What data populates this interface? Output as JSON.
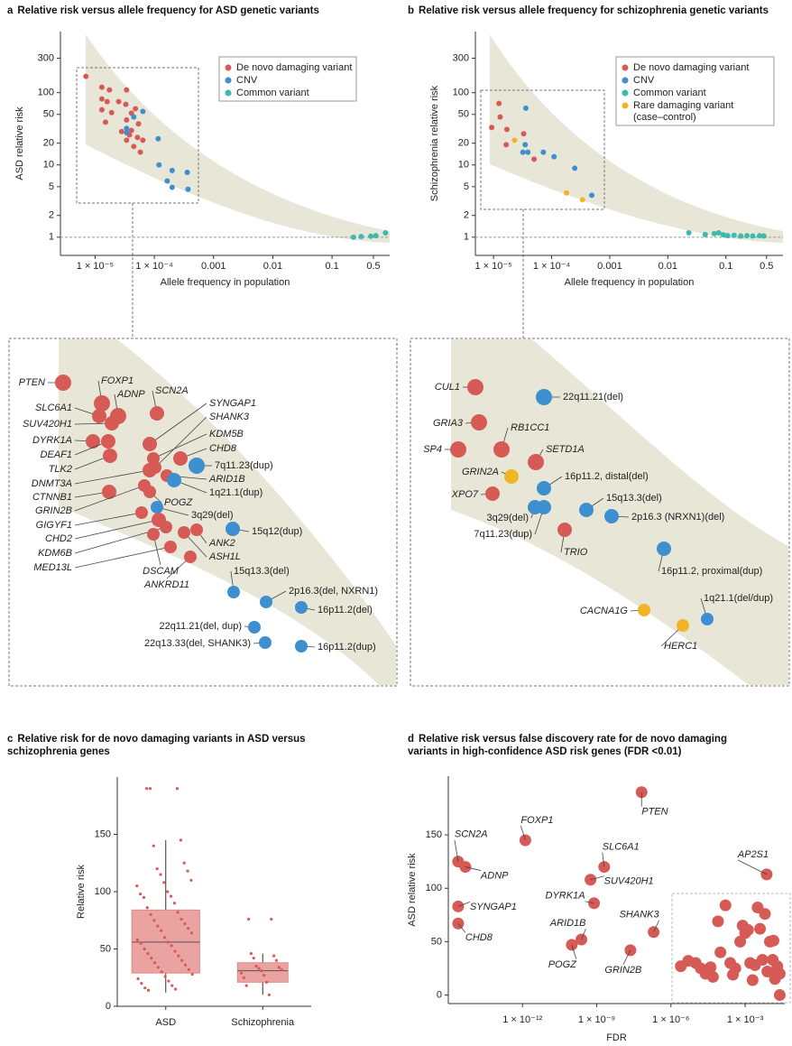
{
  "chart_data": [
    {
      "panel": "a",
      "type": "scatter",
      "title": "Relative risk versus allele frequency for ASD genetic variants",
      "x_label": "Allele frequency in population",
      "y_label": "ASD relative risk",
      "xscale": "log",
      "yscale": "log",
      "xlim": [
        2.6e-06,
        0.94
      ],
      "ylim": [
        0.56,
        700
      ],
      "xticks": [
        {
          "value": 1e-05,
          "label": "1 × 10⁻⁵"
        },
        {
          "value": 0.0001,
          "label": "1 × 10⁻⁴"
        },
        0.001,
        0.01,
        0.1,
        0.5
      ],
      "yticks": [
        1,
        2,
        5,
        10,
        20,
        50,
        100,
        300
      ],
      "legend": "top-right",
      "series": [
        {
          "name": "De novo damaging variant",
          "color": "#d65a55",
          "x": [
            7e-06,
            1.3e-05,
            1.75e-05,
            1.3e-05,
            3.4e-05,
            1.6e-05,
            2.5e-05,
            1.3e-05,
            1.9e-05,
            3.3e-05,
            4.8e-05,
            4.1e-05,
            1.5e-05,
            3.4e-05,
            2.8e-05,
            5.4e-05,
            4.1e-05,
            5.2e-05,
            3.4e-05,
            6.4e-05,
            4.5e-05,
            5.8e-05,
            3.8e-05
          ],
          "values": [
            168,
            119,
            109,
            82,
            109,
            75,
            75,
            58,
            53,
            69,
            60,
            52,
            39,
            42,
            29,
            37,
            30,
            24,
            22,
            22,
            18,
            15,
            26
          ]
        },
        {
          "name": "CNV",
          "color": "#3d8fd0",
          "x": [
            6.4e-05,
            4.5e-05,
            3.4e-05,
            3.4e-05,
            0.000116,
            0.00012,
            0.0002,
            0.000165,
            0.0002,
            0.00036,
            0.00037
          ],
          "values": [
            55,
            46,
            32,
            28,
            23,
            10,
            8.4,
            6.0,
            4.9,
            7.9,
            4.6
          ]
        },
        {
          "name": "Common variant",
          "color": "#3bbab0",
          "x": [
            0.23,
            0.31,
            0.45,
            0.55,
            0.8
          ],
          "values": [
            1.0,
            1.02,
            1.03,
            1.05,
            1.15
          ]
        }
      ]
    },
    {
      "panel": "b",
      "type": "scatter",
      "title": "Relative risk versus allele frequency for schizophrenia genetic variants",
      "x_label": "Allele frequency in population",
      "y_label": "Schizophrenia relative risk",
      "xscale": "log",
      "yscale": "log",
      "xlim": [
        4.87e-06,
        0.96
      ],
      "ylim": [
        0.56,
        700
      ],
      "xticks": [
        {
          "value": 1e-05,
          "label": "1 × 10⁻⁵"
        },
        {
          "value": 0.0001,
          "label": "1 × 10⁻⁴"
        },
        0.001,
        0.01,
        0.1,
        0.5
      ],
      "yticks": [
        1,
        2,
        5,
        10,
        20,
        50,
        100,
        300
      ],
      "legend": "top-right",
      "series": [
        {
          "name": "De novo damaging variant",
          "color": "#d65a55",
          "x": [
            9.3e-06,
            1.24e-05,
            1.3e-05,
            1.7e-05,
            1.65e-05,
            3.3e-05,
            5e-05
          ],
          "values": [
            33,
            71,
            46,
            31,
            19,
            27,
            12
          ]
        },
        {
          "name": "CNV",
          "color": "#3d8fd0",
          "x": [
            3.6e-05,
            3.2e-05,
            3.9e-05,
            3.5e-05,
            7.2e-05,
            0.00011,
            0.00025,
            0.00049
          ],
          "values": [
            61,
            15,
            15,
            19,
            15,
            13,
            9,
            3.8
          ]
        },
        {
          "name": "Common variant",
          "color": "#3bbab0",
          "x": [
            0.023,
            0.044,
            0.063,
            0.075,
            0.09,
            0.107,
            0.138,
            0.18,
            0.23,
            0.29,
            0.38,
            0.45
          ],
          "values": [
            1.15,
            1.09,
            1.12,
            1.15,
            1.08,
            1.05,
            1.06,
            1.04,
            1.05,
            1.04,
            1.05,
            1.04
          ]
        },
        {
          "name": "Rare damaging variant (case–control)",
          "color": "#f2b427",
          "x": [
            2.3e-05,
            0.00018,
            0.00034
          ],
          "values": [
            22,
            4.1,
            3.3
          ]
        }
      ]
    },
    {
      "panel": "c",
      "type": "box",
      "title": "Relative risk for de novo damaging variants in ASD versus schizophrenia genes",
      "y_label": "Relative risk",
      "categories": [
        "ASD",
        "Schizophrenia"
      ],
      "color": "#d65a55",
      "ylim": [
        0,
        200
      ],
      "yticks": [
        0,
        50,
        100,
        150
      ],
      "boxes": [
        {
          "q1": 29,
          "median": 56,
          "q3": 84,
          "whisker_low": 12,
          "whisker_high": 145,
          "points": [
            190,
            190,
            190,
            145,
            140,
            125,
            120,
            118,
            115,
            110,
            108,
            105,
            100,
            98,
            96,
            95,
            90,
            86,
            82,
            80,
            76,
            75,
            72,
            70,
            68,
            66,
            64,
            60,
            58,
            56,
            55,
            53,
            50,
            48,
            46,
            44,
            42,
            40,
            38,
            36,
            34,
            32,
            30,
            28,
            26,
            24,
            22,
            20,
            18,
            16,
            15,
            14
          ]
        },
        {
          "q1": 21,
          "median": 31,
          "q3": 38,
          "whisker_low": 10,
          "whisker_high": 46,
          "points": [
            76,
            76,
            46,
            44,
            42,
            40,
            35,
            34,
            33,
            32,
            31,
            29,
            27,
            25,
            21,
            18,
            10
          ]
        }
      ]
    },
    {
      "panel": "d",
      "type": "scatter",
      "title": "Relative risk versus false discovery rate for de novo damaging variants in high-confidence ASD risk genes (FDR <0.01)",
      "x_label": "FDR",
      "y_label": "ASD relative risk",
      "xscale": "log",
      "xlim": [
        1e-15,
        0.04
      ],
      "ylim": [
        -8,
        205
      ],
      "xticks": [
        {
          "value": 1e-12,
          "label": "1 × 10⁻¹²"
        },
        {
          "value": 1e-09,
          "label": "1 × 10⁻⁹"
        },
        {
          "value": 1e-06,
          "label": "1 × 10⁻⁶"
        },
        {
          "value": 0.001,
          "label": "1 × 10⁻³"
        }
      ],
      "yticks": [
        0,
        50,
        100,
        150
      ],
      "series": [
        {
          "color": "#d65a55",
          "x": [
            6.5e-08,
            1.3e-12,
            2.5e-15,
            4.9e-15,
            2e-09,
            0.0074,
            5.6e-10,
            7.8e-10,
            2.5e-15,
            2.5e-15,
            2e-07,
            2.4e-10,
            9.8e-11,
            2.3e-08,
            2.5e-06,
            5e-06,
            1e-05,
            1.6e-05,
            2.5e-05,
            5e-05,
            4e-05,
            0.0001,
            8e-05,
            0.00016,
            0.00025,
            0.00032,
            0.0004,
            0.00063,
            0.00079,
            0.001,
            0.0013,
            0.0016,
            0.002,
            0.0025,
            0.0032,
            0.004,
            0.005,
            0.0063,
            0.0079,
            0.01,
            0.013,
            0.016,
            0.014,
            0.02,
            0.018,
            0.025,
            0.025
          ],
          "values": [
            190,
            145,
            125,
            120,
            120,
            113,
            108,
            86,
            83,
            67,
            59,
            52,
            47,
            42,
            27,
            32,
            30,
            25,
            20,
            17,
            26,
            40,
            69,
            84,
            30,
            19,
            25,
            50,
            65,
            58,
            61,
            30,
            14,
            28,
            82,
            62,
            33,
            76,
            22,
            50,
            33,
            15,
            51,
            27,
            19,
            20,
            0
          ],
          "labels": [
            "PTEN",
            "FOXP1",
            "SCN2A",
            "ADNP",
            "SLC6A1",
            "AP2S1",
            "SUV420H1",
            "DYRK1A",
            "SYNGAP1",
            "CHD8",
            "SHANK3",
            "ARID1B",
            "POGZ",
            "GRIN2B",
            null,
            null,
            null,
            null,
            null,
            null,
            null,
            null,
            null,
            null,
            null,
            null,
            null,
            null,
            null,
            null,
            null,
            null,
            null,
            null,
            null,
            null,
            null,
            null,
            null,
            null,
            null,
            null,
            null,
            null,
            null,
            null,
            null
          ]
        }
      ]
    }
  ],
  "insets": [
    {
      "items": [
        {
          "label": "PTEN",
          "color": "#d65a55"
        },
        {
          "label": "FOXP1",
          "color": "#d65a55"
        },
        {
          "label": "ADNP",
          "color": "#d65a55"
        },
        {
          "label": "SCN2A",
          "color": "#d65a55"
        },
        {
          "label": "SLC6A1",
          "color": "#d65a55"
        },
        {
          "label": "SUV420H1",
          "color": "#d65a55"
        },
        {
          "label": "SYNGAP1",
          "color": "#d65a55"
        },
        {
          "label": "SHANK3",
          "color": "#d65a55"
        },
        {
          "label": "DYRK1A",
          "color": "#d65a55"
        },
        {
          "label": "KDM5B",
          "color": "#d65a55"
        },
        {
          "label": "DEAF1",
          "color": "#d65a55"
        },
        {
          "label": "CHD8",
          "color": "#d65a55"
        },
        {
          "label": "TLK2",
          "color": "#d65a55"
        },
        {
          "label": "7q11.23(dup)",
          "color": "#3d8fd0"
        },
        {
          "label": "DNMT3A",
          "color": "#d65a55"
        },
        {
          "label": "ARID1B",
          "color": "#d65a55"
        },
        {
          "label": "1q21.1(dup)",
          "color": "#3d8fd0"
        },
        {
          "label": "CTNNB1",
          "color": "#d65a55"
        },
        {
          "label": "POGZ",
          "color": "#d65a55"
        },
        {
          "label": "GRIN2B",
          "color": "#d65a55"
        },
        {
          "label": "3q29(del)",
          "color": "#3d8fd0"
        },
        {
          "label": "GIGYF1",
          "color": "#d65a55"
        },
        {
          "label": "15q12(dup)",
          "color": "#3d8fd0"
        },
        {
          "label": "CHD2",
          "color": "#d65a55"
        },
        {
          "label": "ANK2",
          "color": "#d65a55"
        },
        {
          "label": "KDM6B",
          "color": "#d65a55"
        },
        {
          "label": "ASH1L",
          "color": "#d65a55"
        },
        {
          "label": "MED13L",
          "color": "#d65a55"
        },
        {
          "label": "DSCAM",
          "color": "#d65a55"
        },
        {
          "label": "ANKRD11",
          "color": "#d65a55"
        },
        {
          "label": "15q13.3(del)",
          "color": "#3d8fd0"
        },
        {
          "label": "2p16.3(del, NXRN1)",
          "color": "#3d8fd0"
        },
        {
          "label": "16p11.2(del)",
          "color": "#3d8fd0"
        },
        {
          "label": "22q11.21(del, dup)",
          "color": "#3d8fd0"
        },
        {
          "label": "22q13.33(del, SHANK3)",
          "color": "#3d8fd0"
        },
        {
          "label": "16p11.2(dup)",
          "color": "#3d8fd0"
        }
      ]
    },
    {
      "items": [
        {
          "label": "CUL1",
          "color": "#d65a55"
        },
        {
          "label": "22q11.21(del)",
          "color": "#3d8fd0"
        },
        {
          "label": "GRIA3",
          "color": "#d65a55"
        },
        {
          "label": "RB1CC1",
          "color": "#d65a55"
        },
        {
          "label": "SP4",
          "color": "#d65a55"
        },
        {
          "label": "SETD1A",
          "color": "#d65a55"
        },
        {
          "label": "GRIN2A",
          "color": "#f2b427"
        },
        {
          "label": "16p11.2, distal(del)",
          "color": "#3d8fd0"
        },
        {
          "label": "XPO7",
          "color": "#d65a55"
        },
        {
          "label": "3q29(del)",
          "color": "#3d8fd0"
        },
        {
          "label": "15q13.3(del)",
          "color": "#3d8fd0"
        },
        {
          "label": "2p16.3 (NRXN1)(del)",
          "color": "#3d8fd0"
        },
        {
          "label": "7q11.23(dup)",
          "color": "#3d8fd0"
        },
        {
          "label": "TRIO",
          "color": "#d65a55"
        },
        {
          "label": "16p11.2, proximal(dup)",
          "color": "#3d8fd0"
        },
        {
          "label": "CACNA1G",
          "color": "#f2b427"
        },
        {
          "label": "1q21.1(del/dup)",
          "color": "#3d8fd0"
        },
        {
          "label": "HERC1",
          "color": "#f2b427"
        }
      ]
    }
  ]
}
